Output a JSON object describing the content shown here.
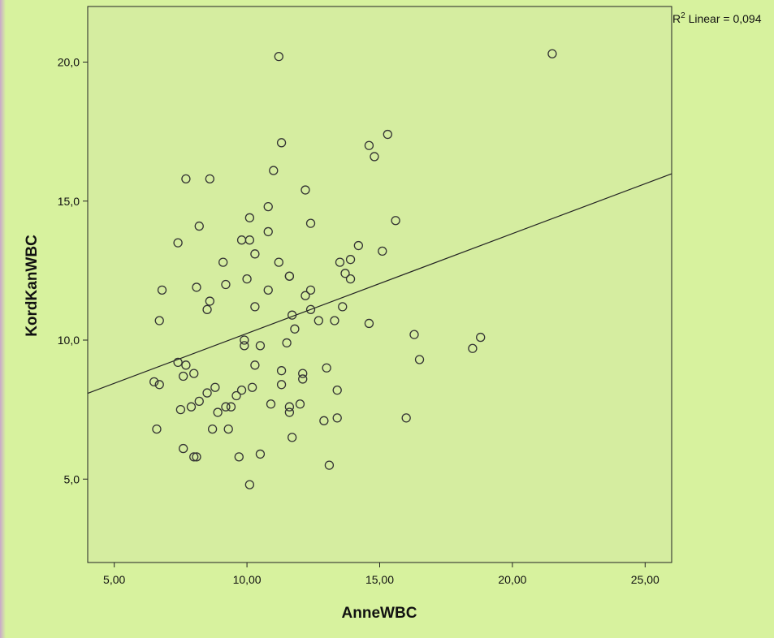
{
  "chart_data": {
    "type": "scatter",
    "xlabel": "AnneWBC",
    "ylabel": "KordKanWBC",
    "xlim": [
      4.0,
      26.0
    ],
    "ylim": [
      2.0,
      22.0
    ],
    "x_ticks": [
      5,
      10,
      15,
      20,
      25
    ],
    "x_tick_labels": [
      "5,00",
      "10,00",
      "15,00",
      "20,00",
      "25,00"
    ],
    "y_ticks": [
      5,
      10,
      15,
      20
    ],
    "y_tick_labels": [
      "5,0",
      "10,0",
      "15,0",
      "20,0"
    ],
    "annotation": {
      "r2_label": "R",
      "r2_sup": "2",
      "r2_text": " Linear = 0,094"
    },
    "fit_line": {
      "slope": 0.359,
      "intercept": 6.65
    },
    "plot_bg": "#d5eda0",
    "page_bg": "#d7f29e",
    "point_color": "#333333",
    "line_color": "#222222",
    "points": [
      [
        6.5,
        8.5
      ],
      [
        6.6,
        6.8
      ],
      [
        6.7,
        8.4
      ],
      [
        6.7,
        10.7
      ],
      [
        6.8,
        11.8
      ],
      [
        7.4,
        13.5
      ],
      [
        7.4,
        9.2
      ],
      [
        7.5,
        7.5
      ],
      [
        7.6,
        6.1
      ],
      [
        7.6,
        8.7
      ],
      [
        7.7,
        9.1
      ],
      [
        7.7,
        15.8
      ],
      [
        7.9,
        7.6
      ],
      [
        8.0,
        5.8
      ],
      [
        8.0,
        8.8
      ],
      [
        8.1,
        5.8
      ],
      [
        8.1,
        11.9
      ],
      [
        8.2,
        7.8
      ],
      [
        8.2,
        14.1
      ],
      [
        8.5,
        8.1
      ],
      [
        8.5,
        11.1
      ],
      [
        8.6,
        11.4
      ],
      [
        8.6,
        15.8
      ],
      [
        8.7,
        6.8
      ],
      [
        8.8,
        8.3
      ],
      [
        8.9,
        7.4
      ],
      [
        9.1,
        12.8
      ],
      [
        9.2,
        7.6
      ],
      [
        9.2,
        12.0
      ],
      [
        9.3,
        6.8
      ],
      [
        9.4,
        7.6
      ],
      [
        9.6,
        8.0
      ],
      [
        9.7,
        5.8
      ],
      [
        9.8,
        8.2
      ],
      [
        9.8,
        13.6
      ],
      [
        9.9,
        9.8
      ],
      [
        9.9,
        10.0
      ],
      [
        10.0,
        12.2
      ],
      [
        10.1,
        4.8
      ],
      [
        10.1,
        13.6
      ],
      [
        10.1,
        14.4
      ],
      [
        10.2,
        8.3
      ],
      [
        10.3,
        9.1
      ],
      [
        10.3,
        11.2
      ],
      [
        10.3,
        13.1
      ],
      [
        10.5,
        5.9
      ],
      [
        10.5,
        9.8
      ],
      [
        10.8,
        11.8
      ],
      [
        10.8,
        13.9
      ],
      [
        10.8,
        14.8
      ],
      [
        10.9,
        7.7
      ],
      [
        11.0,
        16.1
      ],
      [
        11.2,
        12.8
      ],
      [
        11.2,
        20.2
      ],
      [
        11.3,
        8.4
      ],
      [
        11.3,
        8.9
      ],
      [
        11.3,
        17.1
      ],
      [
        11.5,
        9.9
      ],
      [
        11.6,
        7.4
      ],
      [
        11.6,
        7.6
      ],
      [
        11.6,
        12.3
      ],
      [
        11.6,
        12.3
      ],
      [
        11.7,
        6.5
      ],
      [
        11.7,
        10.9
      ],
      [
        11.8,
        10.4
      ],
      [
        12.0,
        7.7
      ],
      [
        12.1,
        8.6
      ],
      [
        12.1,
        8.8
      ],
      [
        12.2,
        11.6
      ],
      [
        12.2,
        15.4
      ],
      [
        12.4,
        11.1
      ],
      [
        12.4,
        11.8
      ],
      [
        12.4,
        14.2
      ],
      [
        12.7,
        10.7
      ],
      [
        12.9,
        7.1
      ],
      [
        13.0,
        9.0
      ],
      [
        13.1,
        5.5
      ],
      [
        13.3,
        10.7
      ],
      [
        13.4,
        7.2
      ],
      [
        13.4,
        8.2
      ],
      [
        13.5,
        12.8
      ],
      [
        13.6,
        11.2
      ],
      [
        13.7,
        12.4
      ],
      [
        13.9,
        12.2
      ],
      [
        13.9,
        12.9
      ],
      [
        14.2,
        13.4
      ],
      [
        14.6,
        10.6
      ],
      [
        14.6,
        17.0
      ],
      [
        14.8,
        16.6
      ],
      [
        15.1,
        13.2
      ],
      [
        15.3,
        17.4
      ],
      [
        15.6,
        14.3
      ],
      [
        16.0,
        7.2
      ],
      [
        16.3,
        10.2
      ],
      [
        16.5,
        9.3
      ],
      [
        18.5,
        9.7
      ],
      [
        18.8,
        10.1
      ],
      [
        21.5,
        20.3
      ]
    ]
  }
}
